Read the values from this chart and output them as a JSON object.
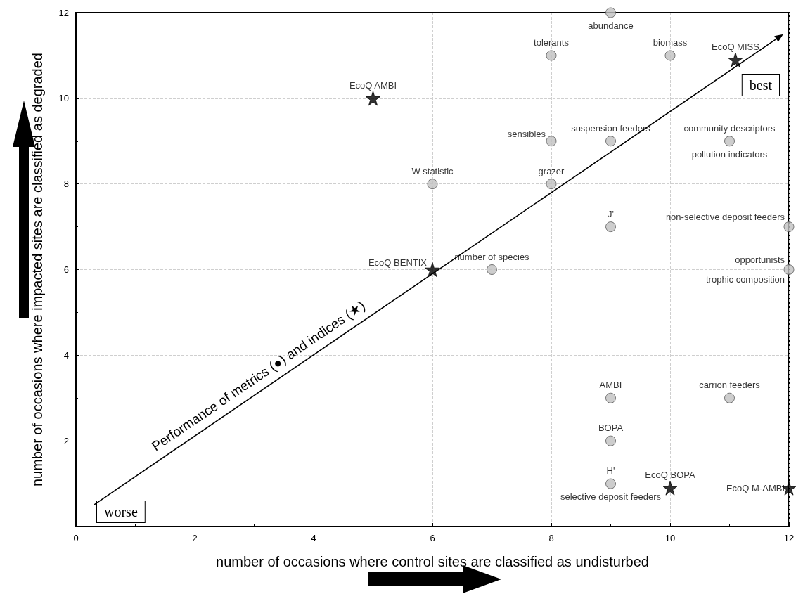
{
  "chart_data": {
    "type": "scatter",
    "xlabel": "number of occasions where control sites are classified as undisturbed",
    "ylabel": "number of occasions where impacted sites are classified as degraded",
    "xlim": [
      0,
      12
    ],
    "xticks": [
      0,
      2,
      4,
      6,
      8,
      10,
      12
    ],
    "ylim": [
      0,
      12
    ],
    "yticks": [
      {
        "value": 0,
        "label": null
      },
      2,
      4,
      6,
      8,
      10,
      12
    ],
    "grid": true,
    "series": [
      {
        "marker": "circle",
        "color": "#c0c0c0",
        "x": [
          9,
          8,
          10,
          9,
          8,
          11,
          6,
          8,
          9,
          12,
          7,
          12,
          9,
          11,
          9,
          9
        ],
        "values": [
          12,
          11,
          11,
          9,
          9,
          9,
          8,
          8,
          7,
          7,
          6,
          6,
          3,
          3,
          2,
          1
        ]
      },
      {
        "marker": "star",
        "color": "#000000",
        "x": [
          11.1,
          5,
          6,
          10,
          12
        ],
        "values": [
          10.9,
          10,
          6,
          0.9,
          0.9
        ]
      }
    ],
    "annotations": [
      {
        "text": "abundance",
        "x": 9,
        "y": 12
      },
      {
        "text": "tolerants",
        "x": 8,
        "y": 11
      },
      {
        "text": "biomass",
        "x": 10,
        "y": 11
      },
      {
        "text": "suspension feeders",
        "x": 9,
        "y": 9
      },
      {
        "text": "sensibles",
        "x": 8,
        "y": 9
      },
      {
        "text": "community descriptors",
        "x": 11,
        "y": 9
      },
      {
        "text": "pollution indicators",
        "x": 11,
        "y": 9
      },
      {
        "text": "W statistic",
        "x": 6,
        "y": 8
      },
      {
        "text": "grazer",
        "x": 8,
        "y": 8
      },
      {
        "text": "J'",
        "x": 9,
        "y": 7
      },
      {
        "text": "non-selective deposit feeders",
        "x": 12,
        "y": 7
      },
      {
        "text": "number of species",
        "x": 7,
        "y": 6
      },
      {
        "text": "opportunists",
        "x": 12,
        "y": 6
      },
      {
        "text": "trophic composition",
        "x": 12,
        "y": 6
      },
      {
        "text": "AMBI",
        "x": 9,
        "y": 3
      },
      {
        "text": "carrion feeders",
        "x": 11,
        "y": 3
      },
      {
        "text": "BOPA",
        "x": 9,
        "y": 2
      },
      {
        "text": "H'",
        "x": 9,
        "y": 1
      },
      {
        "text": "selective deposit feeders",
        "x": 9,
        "y": 1
      },
      {
        "text": "EcoQ MISS",
        "x": 11.1,
        "y": 10.9
      },
      {
        "text": "EcoQ AMBI",
        "x": 5,
        "y": 10
      },
      {
        "text": "EcoQ BENTIX",
        "x": 6,
        "y": 6
      },
      {
        "text": "EcoQ BOPA",
        "x": 10,
        "y": 0.9
      },
      {
        "text": "EcoQ M-AMBI",
        "x": 12,
        "y": 0.9
      },
      "best",
      "worse",
      "Performance of metrics (●) and indices (★)"
    ]
  }
}
